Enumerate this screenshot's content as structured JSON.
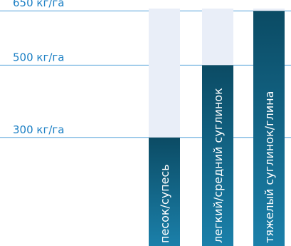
{
  "chart_data": {
    "type": "bar",
    "orientation": "vertical",
    "categories": [
      "песок/супесь",
      "легкий/средний суглинок",
      "тяжелый суглинок/глина"
    ],
    "values": [
      300,
      500,
      650
    ],
    "ylim": [
      0,
      680
    ],
    "yticks": [
      300,
      500,
      650
    ],
    "ytick_labels": [
      "300 кг/га",
      "500 кг/га",
      "650 кг/га"
    ],
    "xlabel": "",
    "ylabel": "",
    "grid": "horizontal lines at ticks",
    "legend": "none",
    "category_labels_position": "inside bars, rotated vertical"
  },
  "colors": {
    "tick_text": "#1b7fc4",
    "grid_line": "#5aa6dc",
    "bar_top": "#0b4b64",
    "bar_bottom": "#1b80aa",
    "bar_background": "#e9eef8",
    "bar_label": "#ffffff"
  }
}
